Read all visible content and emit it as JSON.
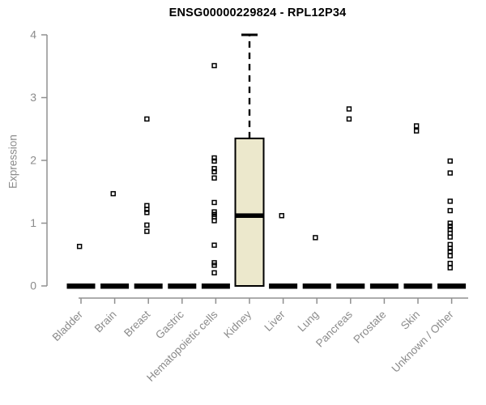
{
  "chart_data": {
    "type": "boxplot",
    "title": "ENSG00000229824 - RPL12P34",
    "ylabel": "Expression",
    "xlabel": "",
    "ylim": [
      0,
      4
    ],
    "yticks": [
      0,
      1,
      2,
      3,
      4
    ],
    "grid": false,
    "legend": false,
    "colors": {
      "box_fill": "#ECE8CC",
      "box_border": "#000000",
      "median": "#000000",
      "outlier": "#000000",
      "axis_line": "#909090",
      "axis_text": "#8b8b8b",
      "title_text": "#000000"
    },
    "categories": [
      "Bladder",
      "Brain",
      "Breast",
      "Gastric",
      "Hematopoietic cells",
      "Kidney",
      "Liver",
      "Lung",
      "Pancreas",
      "Prostate",
      "Skin",
      "Unknown / Other"
    ],
    "series": [
      {
        "category": "Bladder",
        "median": 0,
        "q1": 0,
        "q3": 0,
        "whisker_low": 0,
        "whisker_high": 0,
        "outliers": [
          0.63
        ]
      },
      {
        "category": "Brain",
        "median": 0,
        "q1": 0,
        "q3": 0,
        "whisker_low": 0,
        "whisker_high": 0,
        "outliers": [
          1.47
        ]
      },
      {
        "category": "Breast",
        "median": 0,
        "q1": 0,
        "q3": 0,
        "whisker_low": 0,
        "whisker_high": 0,
        "outliers": [
          2.66,
          1.28,
          1.22,
          1.17,
          0.97,
          0.87
        ]
      },
      {
        "category": "Gastric",
        "median": 0,
        "q1": 0,
        "q3": 0,
        "whisker_low": 0,
        "whisker_high": 0,
        "outliers": []
      },
      {
        "category": "Hematopoietic cells",
        "median": 0,
        "q1": 0,
        "q3": 0,
        "whisker_low": 0,
        "whisker_high": 0,
        "outliers": [
          3.51,
          2.04,
          1.99,
          1.87,
          1.82,
          1.72,
          1.33,
          1.18,
          1.14,
          1.1,
          1.04,
          0.65,
          0.37,
          0.33,
          0.21
        ]
      },
      {
        "category": "Kidney",
        "median": 1.12,
        "q1": 0,
        "q3": 2.35,
        "whisker_low": 0,
        "whisker_high": 4.0,
        "outliers": []
      },
      {
        "category": "Liver",
        "median": 0,
        "q1": 0,
        "q3": 0,
        "whisker_low": 0,
        "whisker_high": 0,
        "outliers": [
          1.12
        ]
      },
      {
        "category": "Lung",
        "median": 0,
        "q1": 0,
        "q3": 0,
        "whisker_low": 0,
        "whisker_high": 0,
        "outliers": [
          0.77
        ]
      },
      {
        "category": "Pancreas",
        "median": 0,
        "q1": 0,
        "q3": 0,
        "whisker_low": 0,
        "whisker_high": 0,
        "outliers": [
          2.82,
          2.66
        ]
      },
      {
        "category": "Prostate",
        "median": 0,
        "q1": 0,
        "q3": 0,
        "whisker_low": 0,
        "whisker_high": 0,
        "outliers": []
      },
      {
        "category": "Skin",
        "median": 0,
        "q1": 0,
        "q3": 0,
        "whisker_low": 0,
        "whisker_high": 0,
        "outliers": [
          2.55,
          2.47
        ]
      },
      {
        "category": "Unknown / Other",
        "median": 0,
        "q1": 0,
        "q3": 0,
        "whisker_low": 0,
        "whisker_high": 0,
        "outliers": [
          1.99,
          1.8,
          1.35,
          1.2,
          1.0,
          0.95,
          0.9,
          0.84,
          0.78,
          0.66,
          0.6,
          0.55,
          0.48,
          0.36,
          0.29
        ]
      }
    ]
  }
}
